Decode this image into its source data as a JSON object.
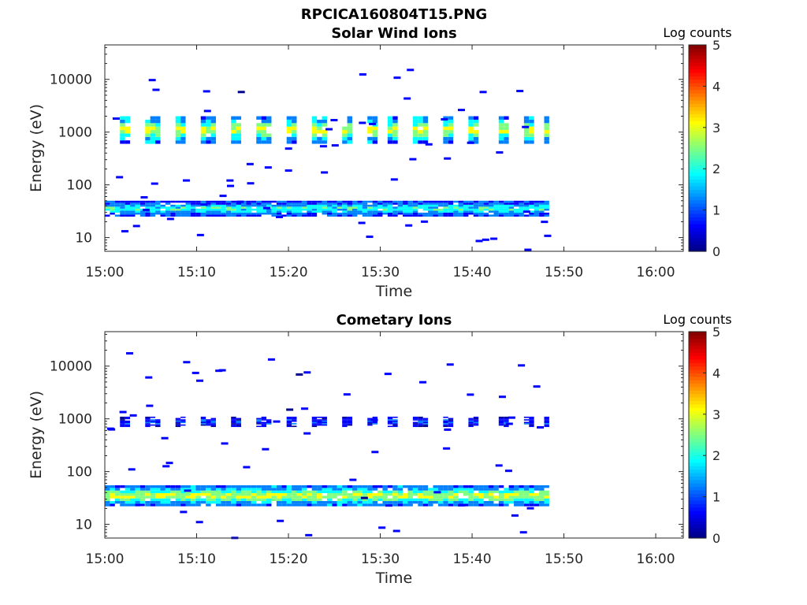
{
  "figure": {
    "title": "RPCICA160804T15.PNG"
  },
  "colormap": [
    "#00008f",
    "#0000ff",
    "#0080ff",
    "#00ffff",
    "#80ff80",
    "#ffff00",
    "#ff8000",
    "#ff0000",
    "#800000"
  ],
  "chart_data": [
    {
      "type": "heatmap",
      "title": "Solar Wind Ions",
      "xlabel": "Time",
      "ylabel": "Energy (eV)",
      "yscale": "log",
      "ylim": [
        5.5,
        45000
      ],
      "xlim": [
        "15:00",
        "16:03"
      ],
      "xticks": [
        "15:00",
        "15:10",
        "15:20",
        "15:30",
        "15:40",
        "15:50",
        "16:00"
      ],
      "yticks": [
        "10",
        "100",
        "1000",
        "10000"
      ],
      "colorbar": {
        "label": "Log counts",
        "range": [
          0,
          5
        ],
        "ticks": [
          "0",
          "1",
          "2",
          "3",
          "4",
          "5"
        ]
      },
      "data_time_range": [
        "15:00",
        "15:48"
      ],
      "bands": [
        {
          "name": "low-energy band",
          "energy_range_eV": [
            25,
            50
          ],
          "peak_log_counts": 2.0
        },
        {
          "name": "mid-energy band",
          "energy_range_eV": [
            600,
            2000
          ],
          "peak_log_counts": 3.0
        }
      ],
      "scan_times": [
        "15:02",
        "15:05",
        "15:08",
        "15:11",
        "15:14",
        "15:17",
        "15:20",
        "15:23",
        "15:26",
        "15:29",
        "15:31",
        "15:34",
        "15:37",
        "15:40",
        "15:43",
        "15:46",
        "15:48"
      ]
    },
    {
      "type": "heatmap",
      "title": "Cometary Ions",
      "xlabel": "Time",
      "ylabel": "Energy (eV)",
      "yscale": "log",
      "ylim": [
        5.5,
        45000
      ],
      "xlim": [
        "15:00",
        "16:03"
      ],
      "xticks": [
        "15:00",
        "15:10",
        "15:20",
        "15:30",
        "15:40",
        "15:50",
        "16:00"
      ],
      "yticks": [
        "10",
        "100",
        "1000",
        "10000"
      ],
      "colorbar": {
        "label": "Log counts",
        "range": [
          0,
          5
        ],
        "ticks": [
          "0",
          "1",
          "2",
          "3",
          "4",
          "5"
        ]
      },
      "data_time_range": [
        "15:00",
        "15:48"
      ],
      "bands": [
        {
          "name": "low-energy band",
          "energy_range_eV": [
            22,
            55
          ],
          "peak_log_counts": 2.8
        },
        {
          "name": "mid-energy band",
          "energy_range_eV": [
            700,
            1100
          ],
          "peak_log_counts": 0.9
        }
      ],
      "scan_times": [
        "15:02",
        "15:05",
        "15:08",
        "15:11",
        "15:14",
        "15:17",
        "15:20",
        "15:23",
        "15:26",
        "15:29",
        "15:31",
        "15:34",
        "15:37",
        "15:40",
        "15:43",
        "15:46",
        "15:48"
      ]
    }
  ]
}
